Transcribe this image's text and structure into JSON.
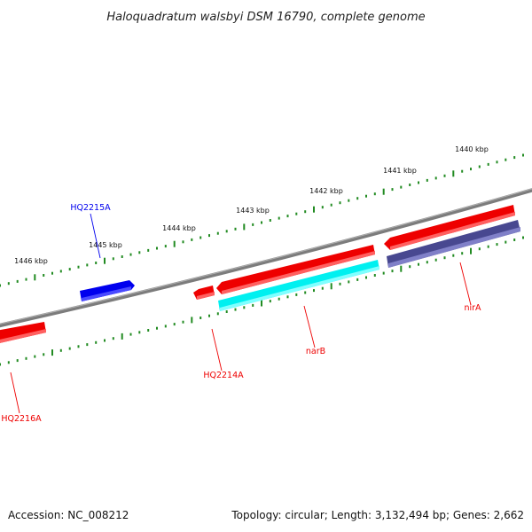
{
  "title": "Haloquadratum walsbyi DSM 16790, complete genome",
  "footer": {
    "accession": "Accession: NC_008212",
    "summary": "Topology: circular; Length: 3,132,494 bp; Genes: 2,662"
  },
  "ticks": [
    "1440 kbp",
    "1441 kbp",
    "1442 kbp",
    "1443 kbp",
    "1444 kbp",
    "1445 kbp",
    "1446 kbp"
  ],
  "genes": [
    {
      "label": "HQ2215A",
      "strand": "forward",
      "color": "#0000ee"
    },
    {
      "label": "HQ2214A",
      "strand": "reverse",
      "color": "#ee0000"
    },
    {
      "label": "narB",
      "strand": "reverse",
      "color": "#ee0000"
    },
    {
      "label": "nirA",
      "strand": "reverse",
      "color": "#ee0000"
    },
    {
      "label": "HQ2216A",
      "strand": "reverse",
      "color": "#ee0000"
    }
  ],
  "colors": {
    "backbone": "#808080",
    "tick": "#228b22",
    "cds_forward": "#0000ee",
    "cds_reverse": "#ee0000",
    "feature_cyan": "#00ffff",
    "feature_navy": "#484890"
  }
}
